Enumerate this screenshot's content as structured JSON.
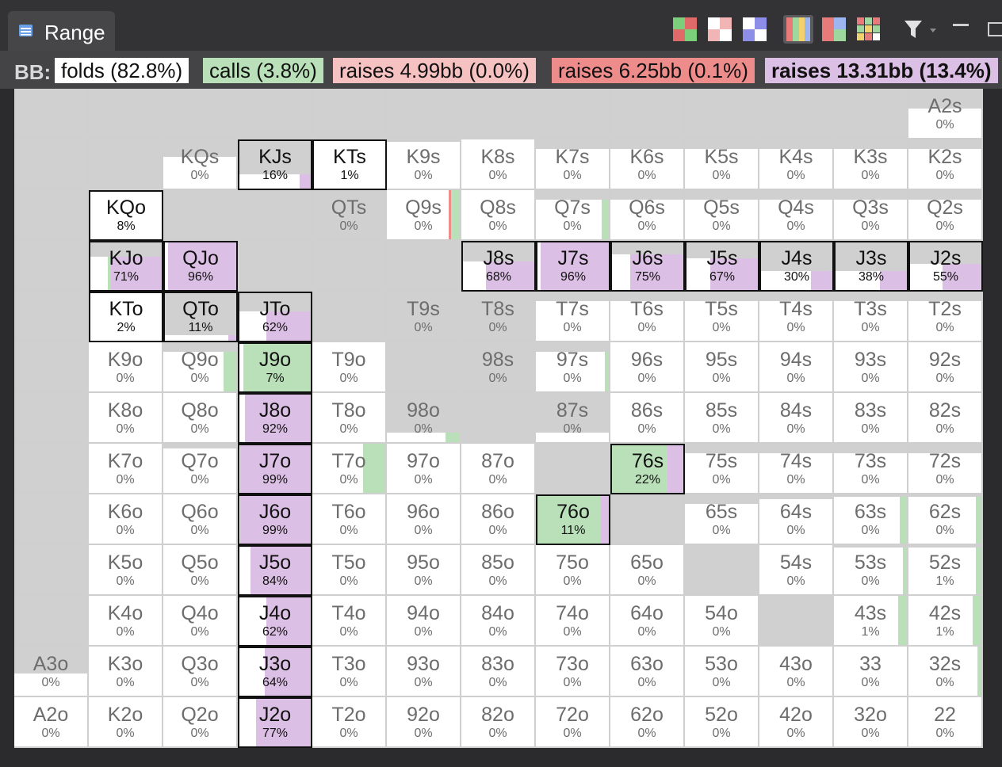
{
  "panel": {
    "title": "Range",
    "icons": [
      "range-table-icon",
      "color-mode-1-icon",
      "color-mode-2-icon",
      "color-mode-3-icon",
      "view-strategy-icon",
      "view-split-icon",
      "grid-view-icon",
      "filter-icon",
      "minimize-icon",
      "maximize-icon"
    ]
  },
  "legend": {
    "player": "BB:",
    "actions": [
      {
        "label": "folds (82.8%)",
        "color": "#ffffff"
      },
      {
        "label": "calls (3.8%)",
        "color": "#b9e0b9"
      },
      {
        "label": "raises 4.99bb (0.0%)",
        "color": "#f6c1c1"
      },
      {
        "label": "raises 6.25bb (0.1%)",
        "color": "#ee8b8b"
      },
      {
        "label": "raises 13.31bb (13.4%)",
        "color": "#dcbfe4"
      }
    ]
  },
  "colors": {
    "fold": "#ffffff",
    "call": "#b9e0b9",
    "raise_small": "#f6c1c1",
    "raise_mid": "#ee8b8b",
    "raise_big": "#dcbfe4",
    "empty": "#d0d0d0"
  },
  "cells": [
    [
      {
        "h": ""
      },
      {
        "h": ""
      },
      {
        "h": ""
      },
      {
        "h": ""
      },
      {
        "h": ""
      },
      {
        "h": ""
      },
      {
        "h": ""
      },
      {
        "h": ""
      },
      {
        "h": ""
      },
      {
        "h": ""
      },
      {
        "h": ""
      },
      {
        "h": ""
      },
      {
        "h": "A2s",
        "p": "0%",
        "f": 0.6
      }
    ],
    [
      {
        "h": ""
      },
      {
        "h": ""
      },
      {
        "h": "KQs",
        "p": "0%",
        "f": 0.65
      },
      {
        "h": "KJs",
        "p": "16%",
        "f": 0.3,
        "r": 0.16,
        "a": 1
      },
      {
        "h": "KTs",
        "p": "1%",
        "f": 1,
        "a": 1
      },
      {
        "h": "K9s",
        "p": "0%",
        "f": 0.95
      },
      {
        "h": "K8s",
        "p": "0%",
        "f": 1
      },
      {
        "h": "K7s",
        "p": "0%",
        "f": 0.8
      },
      {
        "h": "K6s",
        "p": "0%",
        "f": 0.8
      },
      {
        "h": "K5s",
        "p": "0%",
        "f": 0.8
      },
      {
        "h": "K4s",
        "p": "0%",
        "f": 0.8
      },
      {
        "h": "K3s",
        "p": "0%",
        "f": 0.8
      },
      {
        "h": "K2s",
        "p": "0%",
        "f": 0.8
      }
    ],
    [
      {
        "h": ""
      },
      {
        "h": "KQo",
        "p": "8%",
        "f": 1,
        "a": 1
      },
      {
        "h": ""
      },
      {
        "h": ""
      },
      {
        "h": "QTs",
        "p": "0%",
        "f": 0
      },
      {
        "h": "Q9s",
        "p": "0%",
        "f": 1,
        "c": 0.12,
        "m": 0.03
      },
      {
        "h": "Q8s",
        "p": "0%",
        "f": 1
      },
      {
        "h": "Q7s",
        "p": "0%",
        "f": 0.8,
        "c": 0.1
      },
      {
        "h": "Q6s",
        "p": "0%",
        "f": 0.8
      },
      {
        "h": "Q5s",
        "p": "0%",
        "f": 0.8
      },
      {
        "h": "Q4s",
        "p": "0%",
        "f": 0.8
      },
      {
        "h": "Q3s",
        "p": "0%",
        "f": 0.8
      },
      {
        "h": "Q2s",
        "p": "0%",
        "f": 0.8
      }
    ],
    [
      {
        "h": ""
      },
      {
        "h": "KJo",
        "p": "71%",
        "f": 0.7,
        "r": 0.71,
        "c": 0.05,
        "a": 1
      },
      {
        "h": "QJo",
        "p": "96%",
        "f": 1,
        "r": 0.96,
        "a": 1
      },
      {
        "h": ""
      },
      {
        "h": ""
      },
      {
        "h": ""
      },
      {
        "h": "J8s",
        "p": "68%",
        "f": 0.6,
        "r": 0.68,
        "a": 1
      },
      {
        "h": "J7s",
        "p": "96%",
        "f": 1,
        "r": 0.96,
        "a": 1
      },
      {
        "h": "J6s",
        "p": "75%",
        "f": 0.75,
        "r": 0.75,
        "a": 1
      },
      {
        "h": "J5s",
        "p": "67%",
        "f": 0.67,
        "r": 0.67,
        "a": 1
      },
      {
        "h": "J4s",
        "p": "30%",
        "f": 0.4,
        "r": 0.3,
        "a": 1
      },
      {
        "h": "J3s",
        "p": "38%",
        "f": 0.4,
        "r": 0.38,
        "a": 1
      },
      {
        "h": "J2s",
        "p": "55%",
        "f": 0.55,
        "r": 0.55,
        "a": 1
      }
    ],
    [
      {
        "h": ""
      },
      {
        "h": "KTo",
        "p": "2%",
        "f": 1,
        "a": 1
      },
      {
        "h": "QTo",
        "p": "11%",
        "f": 0.11,
        "r": 0.11,
        "a": 1
      },
      {
        "h": "JTo",
        "p": "62%",
        "f": 0.62,
        "r": 0.62,
        "a": 1
      },
      {
        "h": ""
      },
      {
        "h": "T9s",
        "p": "0%",
        "f": 0
      },
      {
        "h": "T8s",
        "p": "0%",
        "f": 0
      },
      {
        "h": "T7s",
        "p": "0%",
        "f": 0.8
      },
      {
        "h": "T6s",
        "p": "0%",
        "f": 0.8
      },
      {
        "h": "T5s",
        "p": "0%",
        "f": 0.8
      },
      {
        "h": "T4s",
        "p": "0%",
        "f": 0.8
      },
      {
        "h": "T3s",
        "p": "0%",
        "f": 0.8
      },
      {
        "h": "T2s",
        "p": "0%",
        "f": 0.8
      }
    ],
    [
      {
        "h": ""
      },
      {
        "h": "K9o",
        "p": "0%",
        "f": 1
      },
      {
        "h": "Q9o",
        "p": "0%",
        "f": 0.8,
        "c": 0.17
      },
      {
        "h": "J9o",
        "p": "7%",
        "f": 1,
        "c": 0.95,
        "a": 1
      },
      {
        "h": "T9o",
        "p": "0%",
        "f": 1
      },
      {
        "h": ""
      },
      {
        "h": "98s",
        "p": "0%",
        "f": 0
      },
      {
        "h": "97s",
        "p": "0%",
        "f": 0.8,
        "c": 0.05
      },
      {
        "h": "96s",
        "p": "0%",
        "f": 1
      },
      {
        "h": "95s",
        "p": "0%",
        "f": 1
      },
      {
        "h": "94s",
        "p": "0%",
        "f": 1
      },
      {
        "h": "93s",
        "p": "0%",
        "f": 1
      },
      {
        "h": "92s",
        "p": "0%",
        "f": 1
      }
    ],
    [
      {
        "h": ""
      },
      {
        "h": "K8o",
        "p": "0%",
        "f": 1
      },
      {
        "h": "Q8o",
        "p": "0%",
        "f": 1
      },
      {
        "h": "J8o",
        "p": "92%",
        "f": 1,
        "r": 0.92,
        "a": 1
      },
      {
        "h": "T8o",
        "p": "0%",
        "f": 1
      },
      {
        "h": "98o",
        "p": "0%",
        "f": 0.2,
        "c": 0.2
      },
      {
        "h": ""
      },
      {
        "h": "87s",
        "p": "0%",
        "f": 0.2
      },
      {
        "h": "86s",
        "p": "0%",
        "f": 1
      },
      {
        "h": "85s",
        "p": "0%",
        "f": 1
      },
      {
        "h": "84s",
        "p": "0%",
        "f": 1
      },
      {
        "h": "83s",
        "p": "0%",
        "f": 1
      },
      {
        "h": "82s",
        "p": "0%",
        "f": 1
      }
    ],
    [
      {
        "h": ""
      },
      {
        "h": "K7o",
        "p": "0%",
        "f": 1
      },
      {
        "h": "Q7o",
        "p": "0%",
        "f": 0.9
      },
      {
        "h": "J7o",
        "p": "99%",
        "f": 1,
        "r": 0.99,
        "a": 1
      },
      {
        "h": "T7o",
        "p": "0%",
        "f": 1,
        "c": 0.3
      },
      {
        "h": "97o",
        "p": "0%",
        "f": 1
      },
      {
        "h": "87o",
        "p": "0%",
        "f": 1
      },
      {
        "h": ""
      },
      {
        "h": "76s",
        "p": "22%",
        "f": 1,
        "c": 0.78,
        "r": 0.22,
        "a": 1
      },
      {
        "h": "75s",
        "p": "0%",
        "f": 0.8
      },
      {
        "h": "74s",
        "p": "0%",
        "f": 0.8
      },
      {
        "h": "73s",
        "p": "0%",
        "f": 0.8
      },
      {
        "h": "72s",
        "p": "0%",
        "f": 0.8
      }
    ],
    [
      {
        "h": ""
      },
      {
        "h": "K6o",
        "p": "0%",
        "f": 1
      },
      {
        "h": "Q6o",
        "p": "0%",
        "f": 1
      },
      {
        "h": "J6o",
        "p": "99%",
        "f": 1,
        "r": 0.99,
        "a": 1
      },
      {
        "h": "T6o",
        "p": "0%",
        "f": 1
      },
      {
        "h": "96o",
        "p": "0%",
        "f": 1
      },
      {
        "h": "86o",
        "p": "0%",
        "f": 1
      },
      {
        "h": "76o",
        "p": "11%",
        "f": 1,
        "c": 0.89,
        "r": 0.11,
        "a": 1
      },
      {
        "h": ""
      },
      {
        "h": "65s",
        "p": "0%",
        "f": 0.8
      },
      {
        "h": "64s",
        "p": "0%",
        "f": 0.9
      },
      {
        "h": "63s",
        "p": "0%",
        "f": 0.95,
        "c": 0.1
      },
      {
        "h": "62s",
        "p": "0%",
        "f": 0.95,
        "c": 0.08
      }
    ],
    [
      {
        "h": ""
      },
      {
        "h": "K5o",
        "p": "0%",
        "f": 1
      },
      {
        "h": "Q5o",
        "p": "0%",
        "f": 1
      },
      {
        "h": "J5o",
        "p": "84%",
        "f": 1,
        "r": 0.84,
        "a": 1
      },
      {
        "h": "T5o",
        "p": "0%",
        "f": 1
      },
      {
        "h": "95o",
        "p": "0%",
        "f": 1
      },
      {
        "h": "85o",
        "p": "0%",
        "f": 1
      },
      {
        "h": "75o",
        "p": "0%",
        "f": 1
      },
      {
        "h": "65o",
        "p": "0%",
        "f": 1
      },
      {
        "h": ""
      },
      {
        "h": "54s",
        "p": "0%",
        "f": 1
      },
      {
        "h": "53s",
        "p": "0%",
        "f": 0.95,
        "c": 0.05
      },
      {
        "h": "52s",
        "p": "1%",
        "f": 0.95,
        "c": 0.08
      }
    ],
    [
      {
        "h": ""
      },
      {
        "h": "K4o",
        "p": "0%",
        "f": 1
      },
      {
        "h": "Q4o",
        "p": "0%",
        "f": 1
      },
      {
        "h": "J4o",
        "p": "62%",
        "f": 1,
        "r": 0.62,
        "a": 1
      },
      {
        "h": "T4o",
        "p": "0%",
        "f": 1
      },
      {
        "h": "94o",
        "p": "0%",
        "f": 1
      },
      {
        "h": "84o",
        "p": "0%",
        "f": 1
      },
      {
        "h": "74o",
        "p": "0%",
        "f": 1
      },
      {
        "h": "64o",
        "p": "0%",
        "f": 1
      },
      {
        "h": "54o",
        "p": "0%",
        "f": 1
      },
      {
        "h": ""
      },
      {
        "h": "43s",
        "p": "1%",
        "f": 1,
        "c": 0.12
      },
      {
        "h": "42s",
        "p": "1%",
        "f": 1,
        "c": 0.12
      }
    ],
    [
      {
        "h": "A3o",
        "p": "0%",
        "f": 0.45
      },
      {
        "h": "K3o",
        "p": "0%",
        "f": 1
      },
      {
        "h": "Q3o",
        "p": "0%",
        "f": 1
      },
      {
        "h": "J3o",
        "p": "64%",
        "f": 1,
        "r": 0.64,
        "a": 1
      },
      {
        "h": "T3o",
        "p": "0%",
        "f": 1
      },
      {
        "h": "93o",
        "p": "0%",
        "f": 1
      },
      {
        "h": "83o",
        "p": "0%",
        "f": 1
      },
      {
        "h": "73o",
        "p": "0%",
        "f": 1
      },
      {
        "h": "63o",
        "p": "0%",
        "f": 1
      },
      {
        "h": "53o",
        "p": "0%",
        "f": 1
      },
      {
        "h": "43o",
        "p": "0%",
        "f": 1
      },
      {
        "h": "33",
        "p": "0%",
        "f": 1
      },
      {
        "h": "32s",
        "p": "0%",
        "f": 1,
        "c": 0.05
      }
    ],
    [
      {
        "h": "A2o",
        "p": "0%",
        "f": 1
      },
      {
        "h": "K2o",
        "p": "0%",
        "f": 1
      },
      {
        "h": "Q2o",
        "p": "0%",
        "f": 1
      },
      {
        "h": "J2o",
        "p": "77%",
        "f": 1,
        "r": 0.77,
        "a": 1
      },
      {
        "h": "T2o",
        "p": "0%",
        "f": 1
      },
      {
        "h": "92o",
        "p": "0%",
        "f": 1
      },
      {
        "h": "82o",
        "p": "0%",
        "f": 1
      },
      {
        "h": "72o",
        "p": "0%",
        "f": 1
      },
      {
        "h": "62o",
        "p": "0%",
        "f": 1
      },
      {
        "h": "52o",
        "p": "0%",
        "f": 1
      },
      {
        "h": "42o",
        "p": "0%",
        "f": 1
      },
      {
        "h": "32o",
        "p": "0%",
        "f": 1
      },
      {
        "h": "22",
        "p": "0%",
        "f": 1
      }
    ]
  ]
}
